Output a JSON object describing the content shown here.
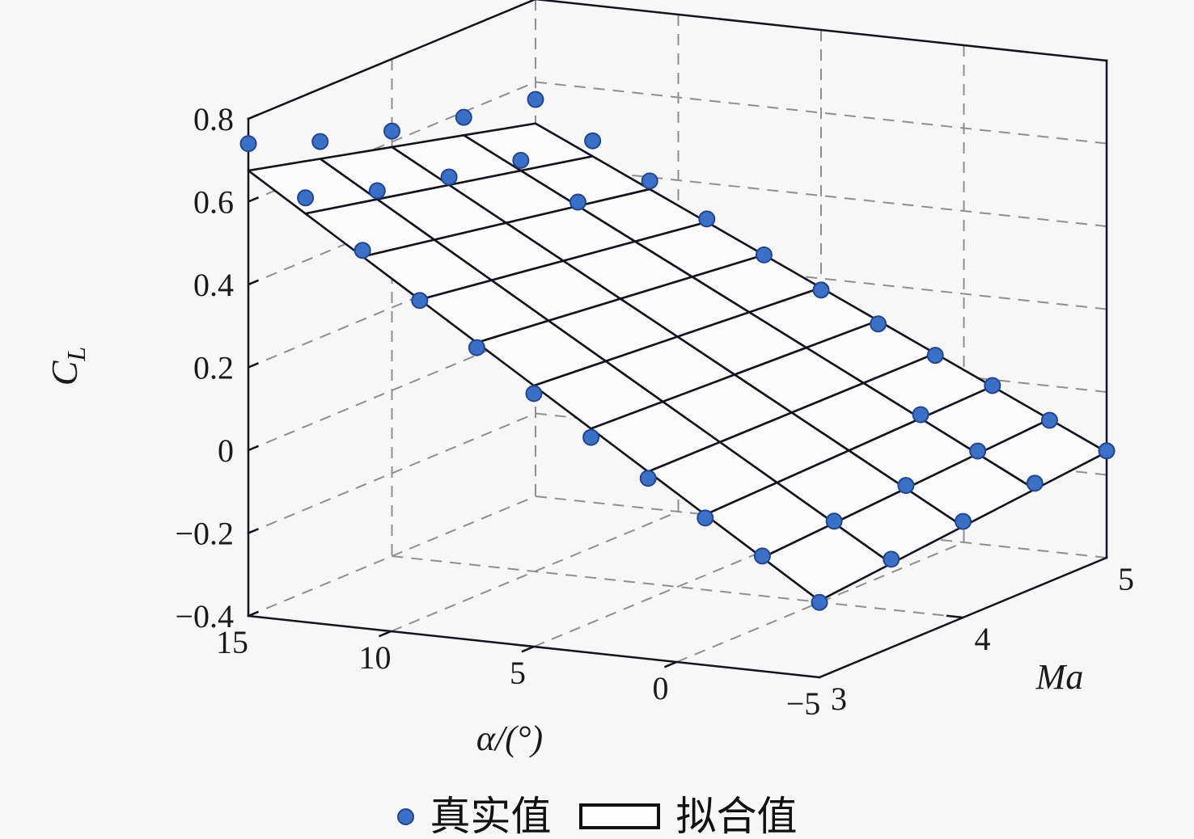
{
  "figure": {
    "background": "#f7f7f7",
    "legend": {
      "true_label": "真实值",
      "fit_label": "拟合值"
    },
    "axes": {
      "z": {
        "label": "C",
        "label_sub": "L",
        "tick_labels": [
          "0.8",
          "0.6",
          "0.4",
          "0.2",
          "0",
          "−0.2",
          "−0.4"
        ],
        "tick_values": [
          0.8,
          0.6,
          0.4,
          0.2,
          0,
          -0.2,
          -0.4
        ],
        "range": [
          -0.4,
          0.8
        ]
      },
      "x": {
        "label": "α/(°)",
        "tick_labels": [
          "15",
          "10",
          "5",
          "0",
          "−5"
        ],
        "tick_values": [
          15,
          10,
          5,
          0,
          -5
        ],
        "range": [
          -5,
          15
        ]
      },
      "y": {
        "label": "Ma",
        "tick_labels": [
          "3",
          "4",
          "5"
        ],
        "tick_values": [
          3,
          4,
          5
        ],
        "range": [
          3,
          5
        ]
      }
    },
    "colors": {
      "marker_fill": "#3a70c5",
      "marker_edge": "#23458f",
      "mesh_line": "#131320",
      "box_edge": "#131320",
      "grid_dash": "#8f8f8f",
      "surface_face": "#fcfcfd",
      "text": "#1a1a1a"
    }
  },
  "chart_data": {
    "type": "scatter",
    "subtype": "3d-scatter-with-fitted-mesh-surface",
    "title": "",
    "xlabel": "α/(°)",
    "ylabel": "Ma",
    "zlabel": "C_L",
    "xlim": [
      -5,
      15
    ],
    "ylim": [
      3,
      5
    ],
    "zlim": [
      -0.4,
      0.8
    ],
    "grid": true,
    "legend_position": "bottom-center",
    "series": [
      {
        "name": "真实值",
        "kind": "scatter3d"
      },
      {
        "name": "拟合值",
        "kind": "mesh-surface"
      }
    ],
    "alpha_values": [
      -5,
      -3,
      -1,
      1,
      3,
      5,
      7,
      9,
      11,
      13,
      15
    ],
    "ma_values": [
      3,
      3.5,
      4,
      4.5,
      5
    ],
    "cl_true_rows_by_alpha": [
      [
        -0.219,
        -0.187,
        -0.168,
        -0.148,
        -0.142
      ],
      [
        -0.122,
        -0.11,
        -0.096,
        -0.085,
        -0.083
      ],
      [
        -0.045,
        -0.031,
        -0.024,
        -0.012,
        -0.014
      ],
      [
        0.036,
        0.042,
        0.043,
        0.048,
        0.044
      ],
      [
        0.12,
        0.117,
        0.112,
        0.111,
        0.105
      ],
      [
        0.211,
        0.198,
        0.188,
        0.181,
        0.172
      ],
      [
        0.307,
        0.284,
        0.267,
        0.255,
        0.242
      ],
      [
        0.406,
        0.374,
        0.35,
        0.331,
        0.314
      ],
      [
        0.512,
        0.468,
        0.437,
        0.412,
        0.391
      ],
      [
        0.624,
        0.569,
        0.53,
        0.498,
        0.473
      ],
      [
        0.74,
        0.673,
        0.626,
        0.587,
        0.558
      ]
    ],
    "fit_mesh": {
      "alpha_step": 2,
      "ma_step": 0.5,
      "corner_cl": {
        "alpha-5_ma3": -0.215,
        "alpha15_ma3": 0.675,
        "alpha-5_ma5": -0.145,
        "alpha15_ma5": 0.5
      }
    }
  }
}
